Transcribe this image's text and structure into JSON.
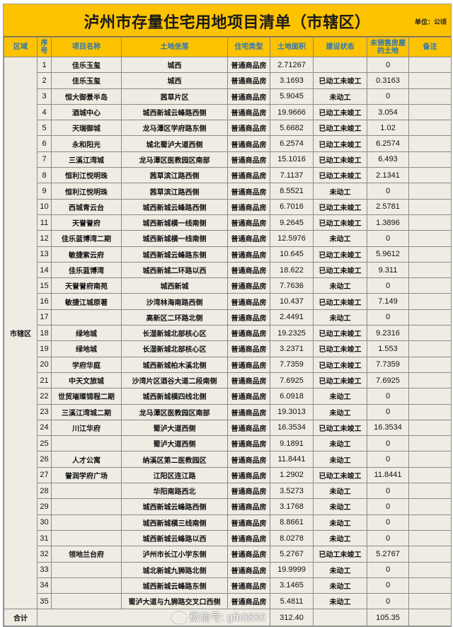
{
  "title": "泸州市存量住宅用地项目清单（市辖区）",
  "unit": "单位：公顷",
  "colors": {
    "header_bg": "#fdc200",
    "header_text": "#2b76b5",
    "body_bg": "#efece3"
  },
  "headers": [
    "区域",
    "序号",
    "项目名称",
    "土地坐落",
    "住宅类型",
    "土地面积",
    "建设状态",
    "未销售房屋的土地",
    "备注"
  ],
  "district": "市辖区",
  "rows": [
    {
      "no": "1",
      "name": "佳乐玉玺",
      "loc": "城西",
      "type": "普通商品房",
      "area": "2.71267",
      "status": "",
      "unsold": "0"
    },
    {
      "no": "2",
      "name": "佳乐玉玺",
      "loc": "城西",
      "type": "普通商品房",
      "area": "3.1693",
      "status": "已动工未竣工",
      "unsold": "0.3163"
    },
    {
      "no": "3",
      "name": "恒大御景半岛",
      "loc": "茜草片区",
      "type": "普通商品房",
      "area": "5.9045",
      "status": "未动工",
      "unsold": "0"
    },
    {
      "no": "4",
      "name": "酒城中心",
      "loc": "城西新城云峰路西侧",
      "type": "普通商品房",
      "area": "19.9666",
      "status": "已动工未竣工",
      "unsold": "3.054"
    },
    {
      "no": "5",
      "name": "天瑞御城",
      "loc": "龙马潭区学府路东侧",
      "type": "普通商品房",
      "area": "5.6682",
      "status": "已动工未竣工",
      "unsold": "1.02"
    },
    {
      "no": "6",
      "name": "永和阳光",
      "loc": "城北蜀泸大道西侧",
      "type": "普通商品房",
      "area": "6.2574",
      "status": "已动工未竣工",
      "unsold": "6.2574"
    },
    {
      "no": "7",
      "name": "三溪江湾城",
      "loc": "龙马潭区医教园区南部",
      "type": "普通商品房",
      "area": "15.1016",
      "status": "已动工未竣工",
      "unsold": "6.493"
    },
    {
      "no": "8",
      "name": "恒利江悦明珠",
      "loc": "茜草滨江路西侧",
      "type": "普通商品房",
      "area": "7.1137",
      "status": "已动工未竣工",
      "unsold": "2.1341"
    },
    {
      "no": "9",
      "name": "恒利江悦明珠",
      "loc": "茜草滨江路西侧",
      "type": "普通商品房",
      "area": "8.5521",
      "status": "未动工",
      "unsold": "0"
    },
    {
      "no": "10",
      "name": "西城青云台",
      "loc": "城西新城云峰路西侧",
      "type": "普通商品房",
      "area": "6.7016",
      "status": "已动工未竣工",
      "unsold": "2.5781"
    },
    {
      "no": "11",
      "name": "天誉誉府",
      "loc": "城西新城横一线南侧",
      "type": "普通商品房",
      "area": "9.2645",
      "status": "已动工未竣工",
      "unsold": "1.3896"
    },
    {
      "no": "12",
      "name": "佳乐蓝博湾二期",
      "loc": "城西新城横一线南侧",
      "type": "普通商品房",
      "area": "12.5976",
      "status": "未动工",
      "unsold": "0"
    },
    {
      "no": "13",
      "name": "敏捷紫云府",
      "loc": "城西新城云峰路东侧",
      "type": "普通商品房",
      "area": "10.645",
      "status": "已动工未竣工",
      "unsold": "5.9612"
    },
    {
      "no": "14",
      "name": "佳乐蓝博湾",
      "loc": "城西新城二环路以西",
      "type": "普通商品房",
      "area": "18.622",
      "status": "已动工未竣工",
      "unsold": "9.311"
    },
    {
      "no": "15",
      "name": "天誉誉府南苑",
      "loc": "城西新城",
      "type": "普通商品房",
      "area": "7.7636",
      "status": "未动工",
      "unsold": "0"
    },
    {
      "no": "16",
      "name": "敏捷江城原著",
      "loc": "沙湾林海南路西侧",
      "type": "普通商品房",
      "area": "10.437",
      "status": "已动工未竣工",
      "unsold": "7.149"
    },
    {
      "no": "17",
      "name": "",
      "loc": "高新区二环路北侧",
      "type": "普通商品房",
      "area": "2.4491",
      "status": "未动工",
      "unsold": "0"
    },
    {
      "no": "18",
      "name": "绿地城",
      "loc": "长湿新城北部核心区",
      "type": "普通商品房",
      "area": "19.2325",
      "status": "已动工未竣工",
      "unsold": "9.2316"
    },
    {
      "no": "19",
      "name": "绿地城",
      "loc": "长湿新城北部核心区",
      "type": "普通商品房",
      "area": "3.2371",
      "status": "已动工未竣工",
      "unsold": "1.553"
    },
    {
      "no": "20",
      "name": "学府华庭",
      "loc": "城西新城柏木溪北侧",
      "type": "普通商品房",
      "area": "7.7359",
      "status": "已动工未竣工",
      "unsold": "7.7359"
    },
    {
      "no": "21",
      "name": "中天文旅城",
      "loc": "沙湾片区酒谷大道二段南侧",
      "type": "普通商品房",
      "area": "7.6925",
      "status": "已动工未竣工",
      "unsold": "7.6925"
    },
    {
      "no": "22",
      "name": "世贸璀璨锦程二期",
      "loc": "城西新城横四线北侧",
      "type": "普通商品房",
      "area": "6.0918",
      "status": "未动工",
      "unsold": "0"
    },
    {
      "no": "23",
      "name": "三溪江湾城二期",
      "loc": "龙马潭区医教园区南部",
      "type": "普通商品房",
      "area": "19.3013",
      "status": "未动工",
      "unsold": "0"
    },
    {
      "no": "24",
      "name": "川江华府",
      "loc": "蜀泸大道西侧",
      "type": "普通商品房",
      "area": "16.3534",
      "status": "已动工未竣工",
      "unsold": "16.3534"
    },
    {
      "no": "25",
      "name": "",
      "loc": "蜀泸大道西侧",
      "type": "普通商品房",
      "area": "9.1891",
      "status": "未动工",
      "unsold": "0"
    },
    {
      "no": "26",
      "name": "人才公寓",
      "loc": "纳溪区第二医教园区",
      "type": "普通商品房",
      "area": "11.8441",
      "status": "未动工",
      "unsold": "0"
    },
    {
      "no": "27",
      "name": "誉润学府广场",
      "loc": "江阳区连江路",
      "type": "普通商品房",
      "area": "1.2902",
      "status": "已动工未竣工",
      "unsold": "11.8441"
    },
    {
      "no": "28",
      "name": "",
      "loc": "华阳南路西北",
      "type": "普通商品房",
      "area": "3.5273",
      "status": "未动工",
      "unsold": "0"
    },
    {
      "no": "29",
      "name": "",
      "loc": "城西新城云峰路西侧",
      "type": "普通商品房",
      "area": "3.1768",
      "status": "未动工",
      "unsold": "0"
    },
    {
      "no": "30",
      "name": "",
      "loc": "城西新城横三线南侧",
      "type": "普通商品房",
      "area": "8.8661",
      "status": "未动工",
      "unsold": "0"
    },
    {
      "no": "31",
      "name": "",
      "loc": "城西新城云峰路以西",
      "type": "普通商品房",
      "area": "8.0278",
      "status": "未动工",
      "unsold": "0"
    },
    {
      "no": "32",
      "name": "领地兰台府",
      "loc": "泸州市长江小学东侧",
      "type": "普通商品房",
      "area": "5.2767",
      "status": "已动工未竣工",
      "unsold": "5.2767"
    },
    {
      "no": "33",
      "name": "",
      "loc": "城北新城九狮路北侧",
      "type": "普通商品房",
      "area": "19.9999",
      "status": "未动工",
      "unsold": "0"
    },
    {
      "no": "34",
      "name": "",
      "loc": "城西新城云峰路东侧",
      "type": "普通商品房",
      "area": "3.1465",
      "status": "未动工",
      "unsold": "0"
    },
    {
      "no": "35",
      "name": "",
      "loc": "蜀泸大道与九狮路交叉口西侧",
      "type": "普通商品房",
      "area": "5.4811",
      "status": "未动工",
      "unsold": "0"
    }
  ],
  "total": {
    "label": "合计",
    "area": "312.40",
    "unsold": "105.35"
  },
  "watermark": "微信号: gfb0830"
}
